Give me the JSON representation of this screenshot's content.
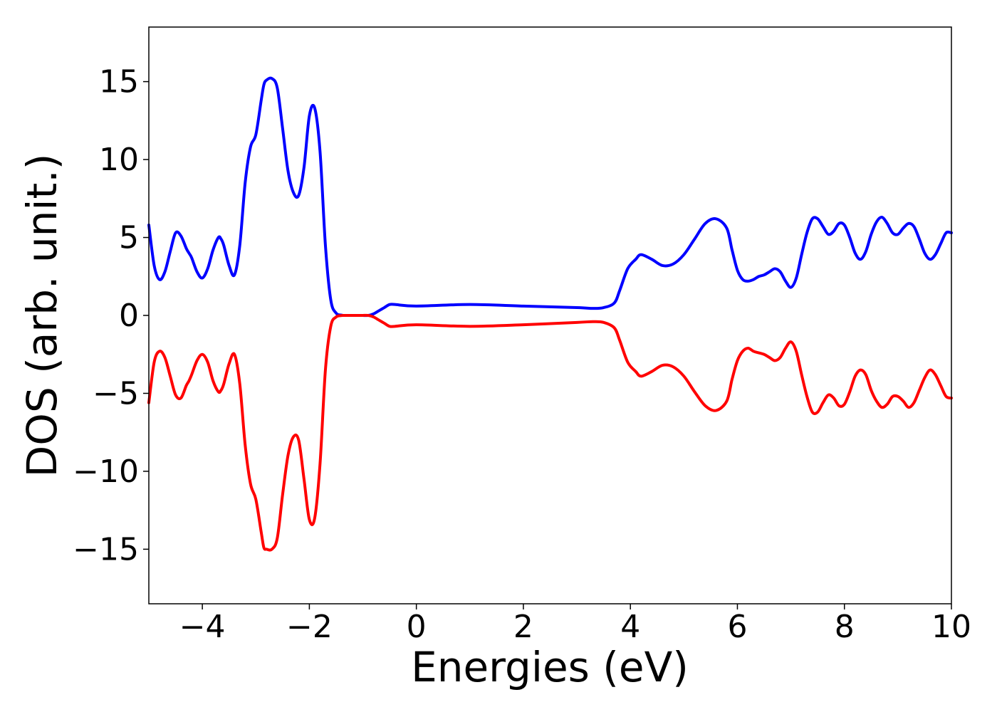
{
  "chart_data": {
    "type": "line",
    "xlabel": "Energies (eV)",
    "ylabel": "DOS (arb. unit.)",
    "xlim": [
      -5,
      10
    ],
    "ylim": [
      -18.5,
      18.5
    ],
    "x_ticks": [
      -4,
      -2,
      0,
      2,
      4,
      6,
      8,
      10
    ],
    "x_tick_labels": [
      "−4",
      "−2",
      "0",
      "2",
      "4",
      "6",
      "8",
      "10"
    ],
    "y_ticks": [
      -15,
      -10,
      -5,
      0,
      5,
      10,
      15
    ],
    "y_tick_labels": [
      "−15",
      "−10",
      "−5",
      "0",
      "5",
      "10",
      "15"
    ],
    "grid": false,
    "series": [
      {
        "color": "#0000ff",
        "x": [
          -5.0,
          -4.9,
          -4.8,
          -4.7,
          -4.6,
          -4.5,
          -4.4,
          -4.3,
          -4.25,
          -4.2,
          -4.1,
          -4.0,
          -3.9,
          -3.8,
          -3.7,
          -3.65,
          -3.6,
          -3.5,
          -3.4,
          -3.3,
          -3.2,
          -3.1,
          -3.0,
          -2.9,
          -2.85,
          -2.8,
          -2.7,
          -2.6,
          -2.5,
          -2.4,
          -2.3,
          -2.2,
          -2.1,
          -2.0,
          -1.9,
          -1.8,
          -1.7,
          -1.6,
          -1.5,
          -1.4,
          -1.35,
          -1.3,
          -1.2,
          -1.1,
          -1.05,
          -1.0,
          -0.9,
          -0.8,
          -0.7,
          -0.6,
          -0.5,
          -0.4,
          0.0,
          1.0,
          2.0,
          3.0,
          3.3,
          3.5,
          3.7,
          3.8,
          3.95,
          4.1,
          4.2,
          4.4,
          4.6,
          4.8,
          5.0,
          5.2,
          5.4,
          5.6,
          5.8,
          5.9,
          6.0,
          6.1,
          6.2,
          6.3,
          6.4,
          6.5,
          6.6,
          6.7,
          6.8,
          6.9,
          7.0,
          7.1,
          7.2,
          7.3,
          7.4,
          7.5,
          7.6,
          7.7,
          7.8,
          7.9,
          8.0,
          8.1,
          8.2,
          8.3,
          8.4,
          8.5,
          8.6,
          8.7,
          8.8,
          8.9,
          9.0,
          9.1,
          9.2,
          9.3,
          9.4,
          9.5,
          9.6,
          9.7,
          9.8,
          9.9,
          10.0
        ],
        "y": [
          5.8,
          3.2,
          2.3,
          2.8,
          4.1,
          5.3,
          5.1,
          4.3,
          4.0,
          3.7,
          2.8,
          2.4,
          3.0,
          4.2,
          5.0,
          4.9,
          4.5,
          3.2,
          2.6,
          4.5,
          8.5,
          10.8,
          11.6,
          13.8,
          14.8,
          15.1,
          15.2,
          14.6,
          12.0,
          9.3,
          7.9,
          7.7,
          9.5,
          12.8,
          13.3,
          10.5,
          4.5,
          1.0,
          0.15,
          0.02,
          0.0,
          0.0,
          0.0,
          0.0,
          0.0,
          0.0,
          0.0,
          0.1,
          0.3,
          0.5,
          0.7,
          0.7,
          0.6,
          0.7,
          0.6,
          0.5,
          0.45,
          0.5,
          0.8,
          1.6,
          3.0,
          3.6,
          3.9,
          3.6,
          3.2,
          3.3,
          3.9,
          4.9,
          5.9,
          6.2,
          5.6,
          4.2,
          2.9,
          2.3,
          2.2,
          2.3,
          2.5,
          2.6,
          2.8,
          3.0,
          2.8,
          2.2,
          1.8,
          2.4,
          3.9,
          5.3,
          6.2,
          6.2,
          5.7,
          5.2,
          5.4,
          5.9,
          5.8,
          5.0,
          4.0,
          3.6,
          4.1,
          5.2,
          6.0,
          6.3,
          5.9,
          5.3,
          5.2,
          5.6,
          5.9,
          5.7,
          4.9,
          4.0,
          3.6,
          3.9,
          4.6,
          5.3,
          5.3
        ]
      },
      {
        "color": "#ff0000",
        "x": [
          -5.0,
          -4.9,
          -4.8,
          -4.7,
          -4.6,
          -4.5,
          -4.4,
          -4.3,
          -4.25,
          -4.2,
          -4.1,
          -4.0,
          -3.9,
          -3.8,
          -3.7,
          -3.65,
          -3.6,
          -3.5,
          -3.4,
          -3.3,
          -3.2,
          -3.1,
          -3.0,
          -2.9,
          -2.85,
          -2.8,
          -2.7,
          -2.6,
          -2.5,
          -2.4,
          -2.3,
          -2.2,
          -2.1,
          -2.0,
          -1.9,
          -1.8,
          -1.7,
          -1.6,
          -1.5,
          -1.4,
          -1.35,
          -1.3,
          -1.2,
          -1.1,
          -1.05,
          -1.0,
          -0.9,
          -0.8,
          -0.7,
          -0.6,
          -0.5,
          -0.4,
          0.0,
          1.0,
          2.0,
          3.0,
          3.3,
          3.5,
          3.7,
          3.8,
          3.95,
          4.1,
          4.2,
          4.4,
          4.6,
          4.8,
          5.0,
          5.2,
          5.4,
          5.6,
          5.8,
          5.9,
          6.0,
          6.1,
          6.2,
          6.3,
          6.4,
          6.5,
          6.6,
          6.7,
          6.8,
          6.9,
          7.0,
          7.1,
          7.2,
          7.3,
          7.4,
          7.5,
          7.6,
          7.7,
          7.8,
          7.9,
          8.0,
          8.1,
          8.2,
          8.3,
          8.4,
          8.5,
          8.6,
          8.7,
          8.8,
          8.9,
          9.0,
          9.1,
          9.2,
          9.3,
          9.4,
          9.5,
          9.6,
          9.7,
          9.8,
          9.9,
          10.0
        ],
        "y": [
          -5.6,
          -3.0,
          -2.3,
          -2.7,
          -3.9,
          -5.1,
          -5.3,
          -4.5,
          -4.2,
          -3.8,
          -2.9,
          -2.5,
          -3.0,
          -4.2,
          -4.9,
          -4.8,
          -4.4,
          -3.1,
          -2.5,
          -4.4,
          -8.3,
          -10.8,
          -11.8,
          -13.9,
          -14.9,
          -15.0,
          -15.0,
          -14.3,
          -11.5,
          -9.0,
          -7.8,
          -8.0,
          -10.5,
          -13.1,
          -13.0,
          -9.5,
          -3.5,
          -0.7,
          -0.1,
          -0.01,
          0.0,
          0.0,
          0.0,
          0.0,
          0.0,
          0.0,
          0.0,
          -0.1,
          -0.3,
          -0.5,
          -0.7,
          -0.7,
          -0.6,
          -0.7,
          -0.6,
          -0.45,
          -0.4,
          -0.45,
          -0.8,
          -1.6,
          -3.0,
          -3.6,
          -3.9,
          -3.6,
          -3.2,
          -3.3,
          -3.9,
          -4.9,
          -5.8,
          -6.1,
          -5.5,
          -4.1,
          -2.9,
          -2.3,
          -2.1,
          -2.3,
          -2.4,
          -2.5,
          -2.7,
          -2.9,
          -2.7,
          -2.1,
          -1.7,
          -2.3,
          -3.8,
          -5.2,
          -6.2,
          -6.2,
          -5.6,
          -5.1,
          -5.3,
          -5.8,
          -5.7,
          -4.9,
          -3.9,
          -3.5,
          -3.8,
          -4.8,
          -5.5,
          -5.9,
          -5.7,
          -5.2,
          -5.2,
          -5.5,
          -5.9,
          -5.6,
          -4.8,
          -4.0,
          -3.5,
          -3.8,
          -4.5,
          -5.2,
          -5.3
        ]
      }
    ]
  }
}
